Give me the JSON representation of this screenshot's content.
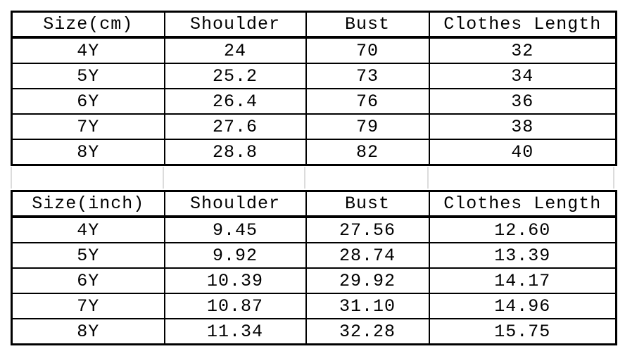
{
  "colors": {
    "border": "#000000",
    "text": "#000000",
    "background": "#ffffff",
    "faint_gridline": "#dcdcdc"
  },
  "chart_data": [
    {
      "type": "table",
      "title": "Size(cm)",
      "headers": [
        "Size(cm)",
        "Shoulder",
        "Bust",
        "Clothes Length"
      ],
      "rows": [
        [
          "4Y",
          "24",
          "70",
          "32"
        ],
        [
          "5Y",
          "25.2",
          "73",
          "34"
        ],
        [
          "6Y",
          "26.4",
          "76",
          "36"
        ],
        [
          "7Y",
          "27.6",
          "79",
          "38"
        ],
        [
          "8Y",
          "28.8",
          "82",
          "40"
        ]
      ]
    },
    {
      "type": "table",
      "title": "Size(inch)",
      "headers": [
        "Size(inch)",
        "Shoulder",
        "Bust",
        "Clothes Length"
      ],
      "rows": [
        [
          "4Y",
          "9.45",
          "27.56",
          "12.60"
        ],
        [
          "5Y",
          "9.92",
          "28.74",
          "13.39"
        ],
        [
          "6Y",
          "10.39",
          "29.92",
          "14.17"
        ],
        [
          "7Y",
          "10.87",
          "31.10",
          "14.96"
        ],
        [
          "8Y",
          "11.34",
          "32.28",
          "15.75"
        ]
      ]
    }
  ]
}
